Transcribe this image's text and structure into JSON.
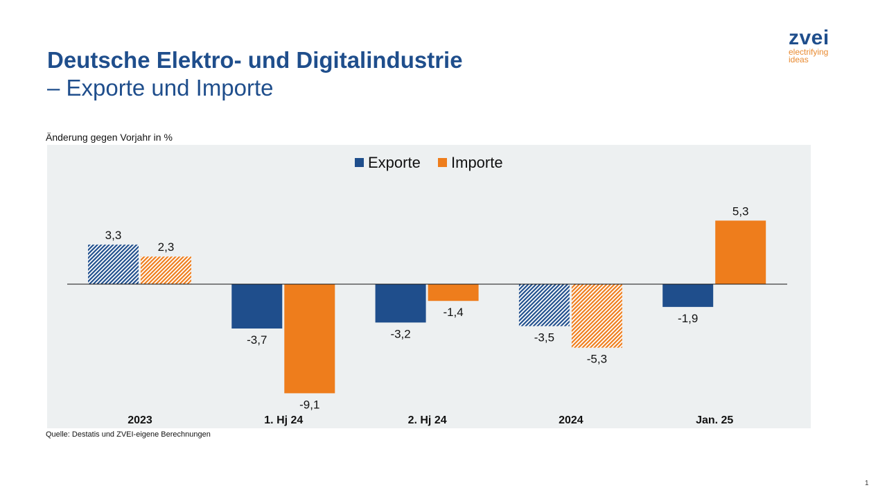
{
  "title": "Deutsche Elektro- und Digitalindustrie",
  "subtitle": "– Exporte und Importe",
  "logo": {
    "name": "zvei",
    "tagline_1": "electrifying",
    "tagline_2": "ideas"
  },
  "source": "Quelle: Destatis und ZVEI-eigene Berechnungen",
  "page_number": "1",
  "chart_data": {
    "type": "bar",
    "ylabel": "Änderung gegen Vorjahr in %",
    "categories": [
      "2023",
      "1. Hj 24",
      "2. Hj 24",
      "2024",
      "Jan. 25"
    ],
    "hatched_categories": [
      "2023",
      "2024"
    ],
    "series": [
      {
        "name": "Exporte",
        "color": "#1f4e8c",
        "values": [
          3.3,
          -3.7,
          -3.2,
          -3.5,
          -1.9
        ],
        "labels": [
          "3,3",
          "-3,7",
          "-3,2",
          "-3,5",
          "-1,9"
        ]
      },
      {
        "name": "Importe",
        "color": "#ee7d1c",
        "values": [
          2.3,
          -9.1,
          -1.4,
          -5.3,
          5.3
        ],
        "labels": [
          "2,3",
          "-9,1",
          "-1,4",
          "-5,3",
          "5,3"
        ]
      }
    ],
    "legend": "top-center",
    "background": "#edf0f1"
  }
}
